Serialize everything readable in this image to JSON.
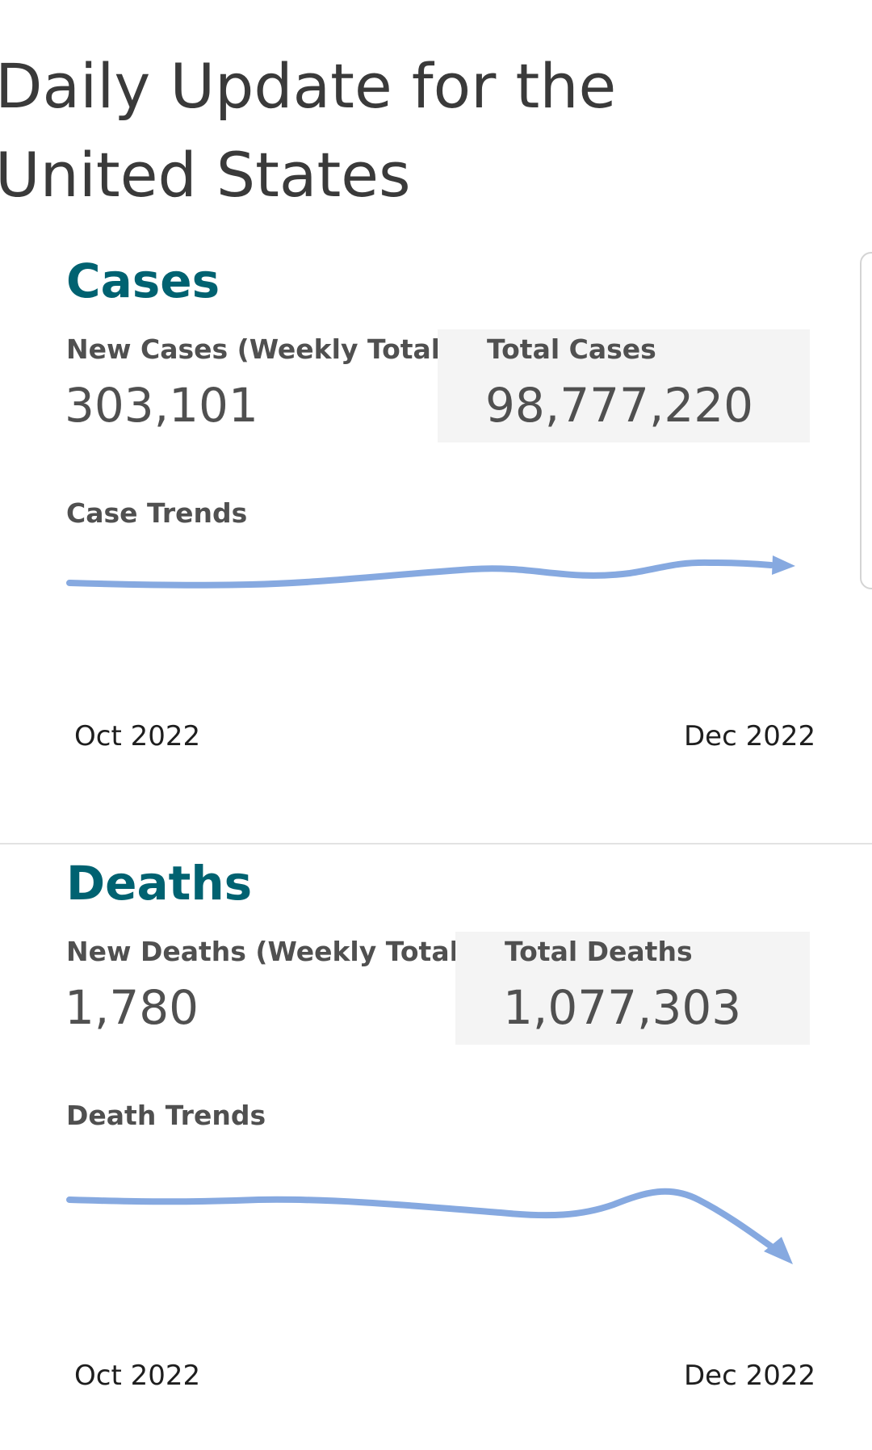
{
  "page": {
    "title": "Daily Update for the United States"
  },
  "cases": {
    "heading": "Cases",
    "new_label": "New Cases (Weekly Total)",
    "new_value": "303,101",
    "total_label": "Total Cases",
    "total_value": "98,777,220",
    "trend_title": "Case Trends",
    "axis_start": "Oct 2022",
    "axis_end": "Dec 2022"
  },
  "deaths": {
    "heading": "Deaths",
    "new_label": "New Deaths (Weekly Total)",
    "new_value": "1,780",
    "total_label": "Total Deaths",
    "total_value": "1,077,303",
    "trend_title": "Death Trends",
    "axis_start": "Oct 2022",
    "axis_end": "Dec 2022"
  },
  "colors": {
    "heading": "#006271",
    "trend_line": "#86a9e0",
    "total_box_bg": "#f4f4f4",
    "text": "#505050"
  }
}
